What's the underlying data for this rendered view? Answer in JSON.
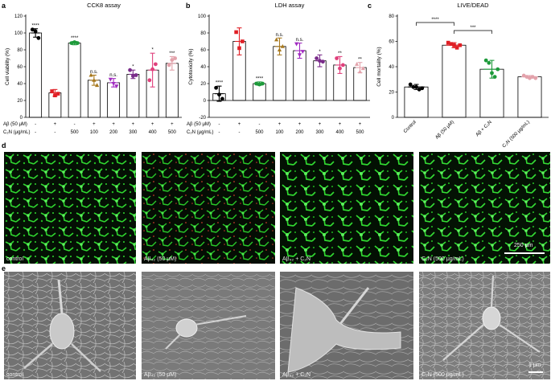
{
  "panel_letters": {
    "a": "a",
    "b": "b",
    "c": "c",
    "d": "d",
    "e": "e"
  },
  "chart_data": [
    {
      "id": "a",
      "type": "bar",
      "title": "CCK8 assay",
      "ylabel": "Cell viability (%)",
      "ylim": [
        0,
        120
      ],
      "yticks": [
        0,
        20,
        40,
        60,
        80,
        100,
        120
      ],
      "categories": [
        "1",
        "2",
        "3",
        "4",
        "5",
        "6",
        "7",
        "8"
      ],
      "values": [
        100,
        29,
        88,
        44,
        41,
        51,
        56,
        64
      ],
      "errors": [
        5,
        4,
        2,
        6,
        5,
        5,
        20,
        8
      ],
      "points": [
        [
          104,
          102,
          94
        ],
        [
          31,
          26,
          28
        ],
        [
          88,
          89,
          88
        ],
        [
          50,
          44,
          38
        ],
        [
          45,
          40,
          37
        ],
        [
          56,
          49,
          50
        ],
        [
          44,
          57,
          63
        ],
        [
          62,
          68,
          70
        ]
      ],
      "colors": [
        "#000000",
        "#e01f25",
        "#1d9a3a",
        "#a8791e",
        "#a12bc1",
        "#7a2c8a",
        "#e0407c",
        "#e3a2ab"
      ],
      "sig": [
        "****",
        "",
        "****",
        "n.s.",
        "n.s.",
        "*",
        "*",
        "***"
      ],
      "treat_rows": [
        {
          "label": "Aβ (50 μM)",
          "values": [
            "-",
            "+",
            "-",
            "+",
            "+",
            "+",
            "+",
            "+"
          ]
        },
        {
          "label": "C₂N (μg/mL)",
          "values": [
            "-",
            "-",
            "500",
            "100",
            "200",
            "300",
            "400",
            "500"
          ]
        }
      ]
    },
    {
      "id": "b",
      "type": "bar",
      "title": "LDH assay",
      "ylabel": "Cytotoxicity (%)",
      "ylim": [
        -20,
        100
      ],
      "yticks": [
        -20,
        0,
        20,
        40,
        60,
        80,
        100
      ],
      "categories": [
        "1",
        "2",
        "3",
        "4",
        "5",
        "6",
        "7",
        "8"
      ],
      "values": [
        8,
        70,
        20,
        64,
        59,
        47,
        42,
        39
      ],
      "errors": [
        9,
        16,
        2,
        10,
        9,
        7,
        10,
        6
      ],
      "points": [
        [
          15,
          7,
          2
        ],
        [
          81,
          62,
          70
        ],
        [
          20,
          19,
          20
        ],
        [
          72,
          60,
          64
        ],
        [
          67,
          54,
          58
        ],
        [
          50,
          47,
          46
        ],
        [
          50,
          38,
          42
        ],
        [
          43,
          34,
          38
        ]
      ],
      "colors": [
        "#000000",
        "#e01f25",
        "#1d9a3a",
        "#a8791e",
        "#a12bc1",
        "#7a2c8a",
        "#e0407c",
        "#e3a2ab"
      ],
      "sig": [
        "****",
        "",
        "****",
        "n.s.",
        "n.s.",
        "*",
        "**",
        "**"
      ],
      "treat_rows": [
        {
          "label": "Aβ (50 μM)",
          "values": [
            "-",
            "+",
            "-",
            "+",
            "+",
            "+",
            "+",
            "+"
          ]
        },
        {
          "label": "C₂N (μg/mL)",
          "values": [
            "-",
            "-",
            "500",
            "100",
            "200",
            "300",
            "400",
            "500"
          ]
        }
      ]
    },
    {
      "id": "c",
      "type": "bar",
      "title": "LIVE/DEAD",
      "ylabel": "Cell mortality (%)",
      "ylim": [
        0,
        80
      ],
      "yticks": [
        0,
        20,
        40,
        60,
        80
      ],
      "categories": [
        "Control",
        "Aβ (50 μM)",
        "Aβ + C₂N",
        "C₂N (500 μg/mL)"
      ],
      "values": [
        24,
        57,
        38,
        32
      ],
      "errors": [
        2,
        2,
        7,
        1
      ],
      "points": [
        [
          26,
          24,
          24,
          22,
          23
        ],
        [
          59,
          58,
          57,
          55,
          57
        ],
        [
          45,
          43,
          35,
          32,
          38
        ],
        [
          33,
          32,
          31,
          32,
          31
        ]
      ],
      "colors": [
        "#000000",
        "#e01f25",
        "#1d9a3a",
        "#e3a2ab"
      ],
      "comparisons": [
        {
          "from": 0,
          "to": 1,
          "label": "****"
        },
        {
          "from": 1,
          "to": 2,
          "label": "***"
        }
      ]
    }
  ],
  "microscopy": {
    "d_labels": [
      "control",
      "Aβ₄₂ (50 μM)",
      "Aβ₄₂ + C₂N",
      "C₂N (500 μg/mL)"
    ],
    "d_scale": "250 μm",
    "e_labels": [
      "control",
      "Aβ₄₂ (50 μM)",
      "Aβ₄₂ + C₂N",
      "C₂N (500 μg/mL)"
    ],
    "e_scale": "1 μm"
  }
}
